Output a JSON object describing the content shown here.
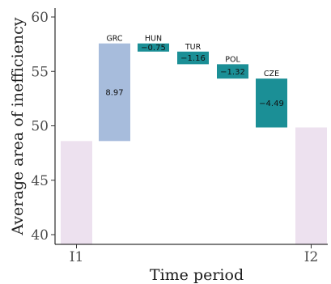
{
  "chart_data": {
    "type": "bar",
    "subtype": "waterfall",
    "xlabel": "Time period",
    "ylabel": "Average area of inefficiency",
    "ylim": [
      39.2,
      61.0
    ],
    "yticks": [
      40,
      45,
      50,
      55,
      60
    ],
    "x_tick_labels": [
      "I1",
      "I2"
    ],
    "grid": false,
    "legend": "none",
    "bars": [
      {
        "kind": "total",
        "label": "",
        "start": 39.2,
        "end": 48.6,
        "value_label": "",
        "color": "#ede1ef"
      },
      {
        "kind": "delta",
        "label": "GRC",
        "start": 48.6,
        "end": 57.57,
        "value_label": "8.97",
        "color": "#a7bcdc"
      },
      {
        "kind": "delta",
        "label": "HUN",
        "start": 57.57,
        "end": 56.82,
        "value_label": "−0.75",
        "color": "#1b8f96"
      },
      {
        "kind": "delta",
        "label": "TUR",
        "start": 56.82,
        "end": 55.66,
        "value_label": "−1.16",
        "color": "#1b8f96"
      },
      {
        "kind": "delta",
        "label": "POL",
        "start": 55.66,
        "end": 54.34,
        "value_label": "−1.32",
        "color": "#1b8f96"
      },
      {
        "kind": "delta",
        "label": "CZE",
        "start": 54.34,
        "end": 49.85,
        "value_label": "−4.49",
        "color": "#1b8f96"
      },
      {
        "kind": "total",
        "label": "",
        "start": 39.2,
        "end": 49.85,
        "value_label": "",
        "color": "#ede1ef"
      }
    ]
  }
}
